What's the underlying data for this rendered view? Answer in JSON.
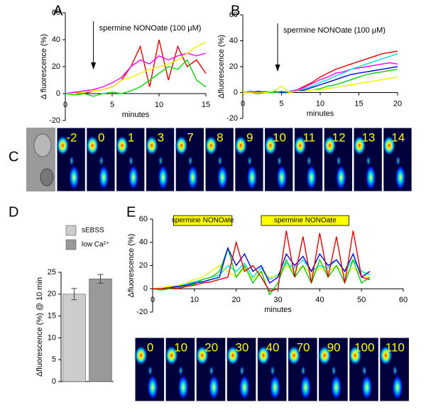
{
  "panels": [
    "A",
    "B",
    "C",
    "D",
    "E"
  ],
  "frames_c": [
    "-2",
    "0",
    "1",
    "3",
    "7",
    "8",
    "9",
    "10",
    "11",
    "12",
    "13",
    "14"
  ],
  "frames_e": [
    "0",
    "10",
    "20",
    "30",
    "40",
    "70",
    "90",
    "100",
    "110"
  ],
  "chart_data": [
    {
      "type": "line",
      "xlabel": "minutes",
      "ylabel": "Δ fluorescence (%)",
      "annotation": {
        "text": "spermine NONOate (100 μM)",
        "x": 3
      },
      "xlim": [
        0,
        15
      ],
      "ylim": [
        -20,
        60
      ],
      "xticks": [
        0,
        5,
        10,
        15
      ],
      "yticks": [
        -20,
        0,
        20,
        40,
        60
      ],
      "x": [
        0,
        1,
        2,
        3,
        4,
        5,
        6,
        7,
        8,
        9,
        10,
        11,
        12,
        13,
        14,
        15
      ],
      "series": [
        {
          "color": "#e00000",
          "values": [
            0,
            1,
            0,
            2,
            3,
            5,
            10,
            20,
            35,
            5,
            40,
            10,
            35,
            20,
            25,
            15
          ]
        },
        {
          "color": "#ff00ff",
          "values": [
            0,
            1,
            2,
            3,
            5,
            8,
            12,
            20,
            25,
            22,
            28,
            25,
            28,
            30,
            28,
            30
          ]
        },
        {
          "color": "#f0f000",
          "values": [
            0,
            0,
            1,
            2,
            3,
            5,
            10,
            12,
            15,
            18,
            20,
            22,
            25,
            30,
            35,
            38
          ]
        },
        {
          "color": "#00e000",
          "values": [
            0,
            -1,
            0,
            -2,
            0,
            1,
            0,
            2,
            5,
            10,
            15,
            20,
            18,
            25,
            10,
            5
          ]
        }
      ]
    },
    {
      "type": "line",
      "xlabel": "minutes",
      "ylabel": "Δfluorescence (%)",
      "annotation": {
        "text": "spermine NONOate (100 μM)",
        "x": 4.5
      },
      "xlim": [
        0,
        20
      ],
      "ylim": [
        -20,
        60
      ],
      "xticks": [
        0,
        5,
        10,
        15,
        20
      ],
      "yticks": [
        -20,
        0,
        20,
        40,
        60
      ],
      "x": [
        0,
        1,
        2,
        3,
        4,
        5,
        6,
        7,
        8,
        9,
        10,
        11,
        12,
        13,
        14,
        15,
        16,
        17,
        18,
        19,
        20
      ],
      "series": [
        {
          "color": "#e00000",
          "values": [
            0,
            0,
            1,
            0,
            0,
            1,
            0,
            2,
            5,
            8,
            12,
            15,
            18,
            20,
            22,
            24,
            26,
            28,
            30,
            31,
            32
          ]
        },
        {
          "color": "#ff00ff",
          "values": [
            0,
            1,
            0,
            1,
            0,
            0,
            1,
            2,
            4,
            7,
            10,
            12,
            15,
            16,
            18,
            19,
            20,
            21,
            22,
            23,
            22
          ]
        },
        {
          "color": "#00e0e0",
          "values": [
            0,
            0,
            0,
            1,
            0,
            0,
            1,
            1,
            3,
            5,
            8,
            10,
            13,
            15,
            18,
            20,
            22,
            24,
            26,
            28,
            30
          ]
        },
        {
          "color": "#0000e0",
          "values": [
            0,
            0,
            1,
            0,
            1,
            0,
            0,
            1,
            2,
            4,
            6,
            8,
            10,
            12,
            14,
            15,
            16,
            17,
            18,
            19,
            20
          ]
        },
        {
          "color": "#00d000",
          "values": [
            0,
            0,
            -1,
            0,
            0,
            1,
            0,
            1,
            1,
            2,
            3,
            5,
            6,
            8,
            10,
            12,
            14,
            15,
            16,
            17,
            18
          ]
        },
        {
          "color": "#f0f000",
          "values": [
            0,
            0,
            0,
            0,
            1,
            5,
            0,
            1,
            1,
            2,
            2,
            3,
            4,
            5,
            6,
            7,
            8,
            9,
            10,
            11,
            12
          ]
        }
      ]
    },
    {
      "type": "bar",
      "ylabel": "Δfluorescence (%) @ 10 min",
      "categories": [
        "sEBSS",
        "low Ca²⁺"
      ],
      "colors": [
        "#cccccc",
        "#999999"
      ],
      "values": [
        20,
        23.5
      ],
      "errors": [
        1.3,
        1.0
      ],
      "ylim": [
        0,
        25
      ],
      "yticks": [
        0,
        5,
        10,
        15,
        20,
        25
      ]
    },
    {
      "type": "line",
      "xlabel": "minutes",
      "ylabel": "Δfluorescence (%)",
      "bands": [
        {
          "text": "spermine NONOate",
          "x": [
            5,
            19
          ]
        },
        {
          "text": "spermine NONOate",
          "x": [
            26,
            47
          ]
        }
      ],
      "xlim": [
        0,
        60
      ],
      "ylim": [
        -20,
        60
      ],
      "xticks": [
        0,
        10,
        20,
        30,
        40,
        50,
        60
      ],
      "yticks": [
        -20,
        0,
        20,
        40,
        60
      ],
      "x": [
        0,
        2,
        4,
        6,
        8,
        10,
        12,
        14,
        16,
        18,
        20,
        22,
        24,
        26,
        28,
        30,
        32,
        34,
        36,
        38,
        40,
        42,
        44,
        46,
        48,
        50,
        52
      ],
      "series": [
        {
          "color": "#00e0e0",
          "values": [
            0,
            0,
            1,
            2,
            4,
            6,
            8,
            10,
            12,
            20,
            15,
            22,
            10,
            18,
            8,
            12,
            22,
            18,
            25,
            15,
            20,
            18,
            25,
            15,
            25,
            15,
            12
          ]
        },
        {
          "color": "#f0f000",
          "values": [
            0,
            1,
            2,
            3,
            5,
            8,
            10,
            15,
            20,
            15,
            10,
            18,
            8,
            15,
            10,
            10,
            20,
            15,
            20,
            12,
            18,
            15,
            20,
            12,
            18,
            12,
            10
          ]
        },
        {
          "color": "#00d000",
          "values": [
            0,
            -1,
            0,
            1,
            2,
            4,
            8,
            10,
            15,
            35,
            10,
            20,
            5,
            15,
            -5,
            5,
            25,
            10,
            20,
            5,
            25,
            10,
            20,
            5,
            25,
            5,
            10
          ]
        },
        {
          "color": "#0000e0",
          "values": [
            0,
            0,
            1,
            2,
            3,
            5,
            6,
            8,
            10,
            35,
            20,
            30,
            15,
            20,
            5,
            10,
            30,
            20,
            28,
            15,
            30,
            20,
            25,
            15,
            30,
            10,
            15
          ]
        },
        {
          "color": "#e00000",
          "values": [
            0,
            0,
            1,
            0,
            2,
            3,
            5,
            6,
            8,
            10,
            40,
            15,
            20,
            10,
            -2,
            0,
            50,
            10,
            45,
            5,
            48,
            10,
            45,
            5,
            50,
            10,
            8
          ]
        }
      ]
    }
  ]
}
